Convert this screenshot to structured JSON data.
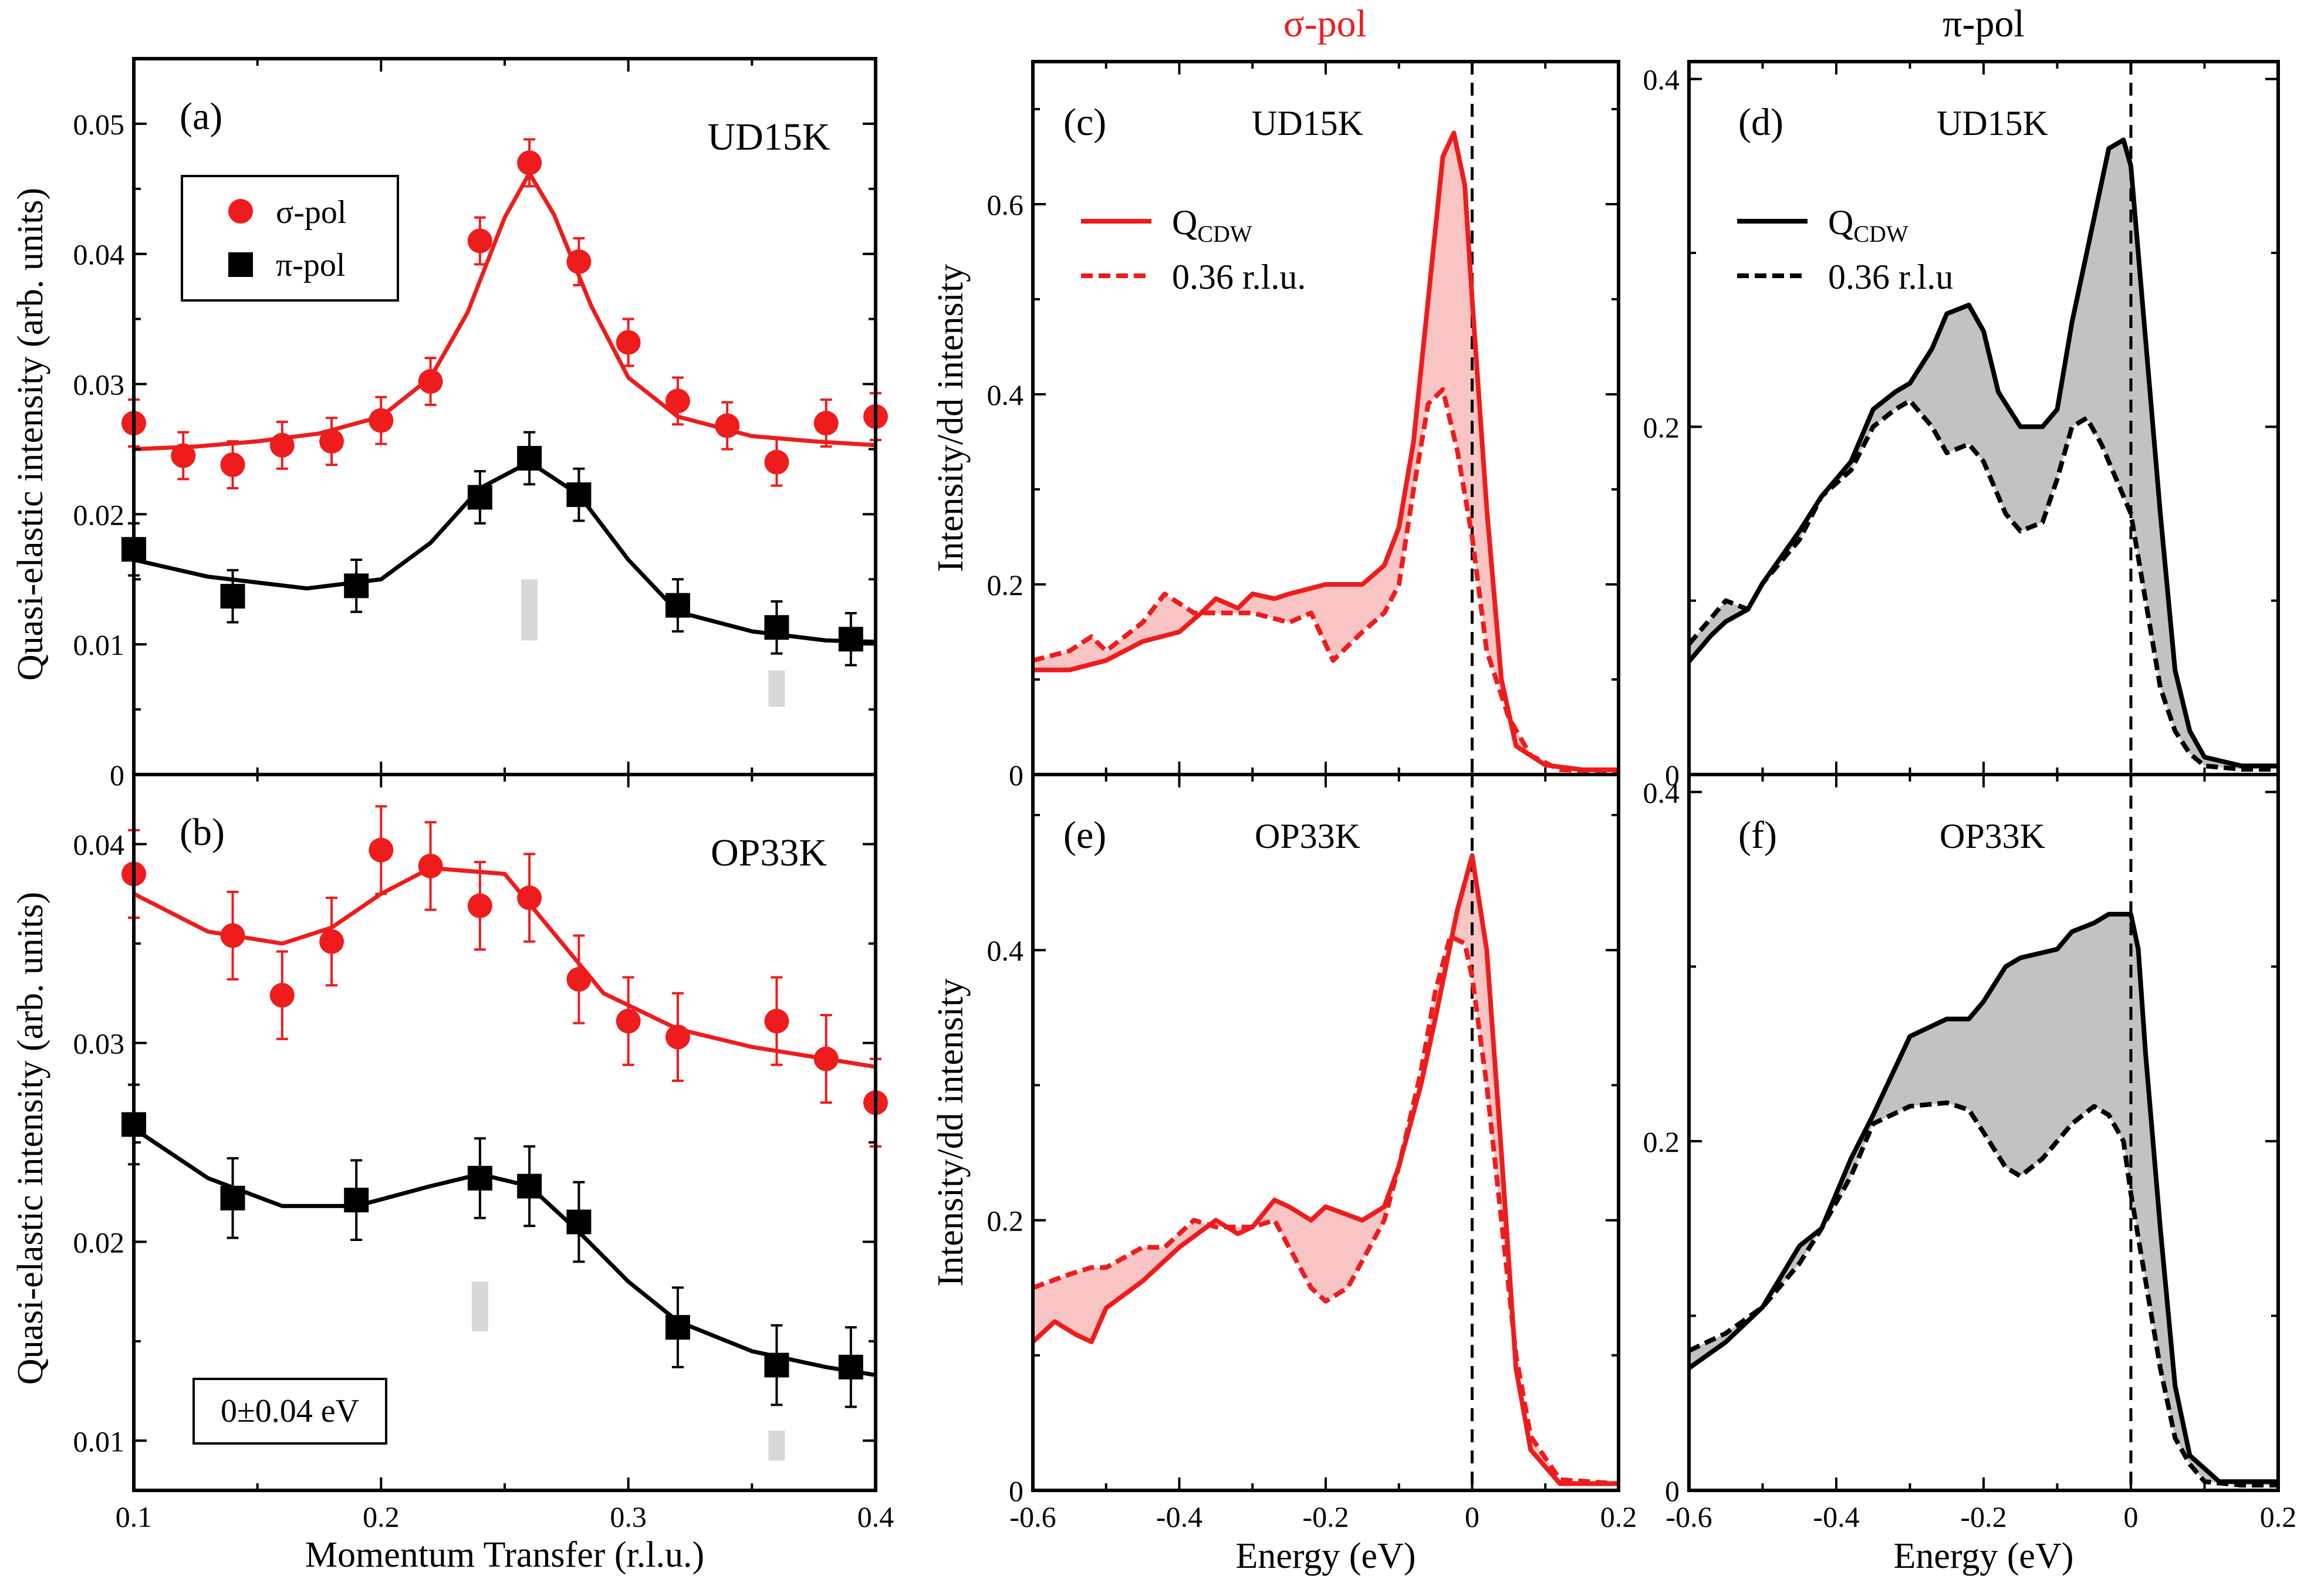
{
  "colors": {
    "red": "#ee1c1c",
    "black": "#000000",
    "red_fill": "#f8c4c4",
    "grey_fill": "#c2c2c2",
    "marker_grey": "#d8d8d8"
  },
  "headers": {
    "sigma": "σ-pol",
    "pi": "π-pol"
  },
  "chart_data": [
    {
      "id": "a",
      "type": "scatter",
      "panel_label": "(a)",
      "sample_label": "UD15K",
      "ylabel": "Quasi-elastic intensity (arb. units)",
      "xlim": [
        0.1,
        0.4
      ],
      "ylim": [
        0,
        0.055
      ],
      "yticks": [
        0,
        0.01,
        0.02,
        0.03,
        0.04,
        0.05
      ],
      "ytick_labels": [
        "0",
        "0.01",
        "0.02",
        "0.03",
        "0.04",
        "0.05"
      ],
      "legend": {
        "entries": [
          "σ-pol",
          "π-pol"
        ],
        "location": "upper-left"
      },
      "series": [
        {
          "name": "σ-pol",
          "color": "red",
          "marker": "circle",
          "x": [
            0.1,
            0.12,
            0.14,
            0.16,
            0.18,
            0.2,
            0.22,
            0.24,
            0.26,
            0.28,
            0.3,
            0.32,
            0.34,
            0.36,
            0.38,
            0.4
          ],
          "y": [
            0.027,
            0.0245,
            0.0238,
            0.0253,
            0.0256,
            0.0272,
            0.0302,
            0.041,
            0.047,
            0.0394,
            0.0332,
            0.0287,
            0.0268,
            0.024,
            0.027,
            0.0275
          ],
          "err": [
            0.0018,
            0.0018,
            0.0018,
            0.0018,
            0.0018,
            0.0018,
            0.0018,
            0.0018,
            0.0018,
            0.0018,
            0.0018,
            0.0018,
            0.0018,
            0.0018,
            0.0018,
            0.0018
          ],
          "fit_x": [
            0.1,
            0.125,
            0.15,
            0.175,
            0.2,
            0.22,
            0.235,
            0.25,
            0.26,
            0.27,
            0.285,
            0.3,
            0.32,
            0.35,
            0.375,
            0.4
          ],
          "fit_y": [
            0.025,
            0.0252,
            0.0256,
            0.0262,
            0.0275,
            0.0305,
            0.0355,
            0.0428,
            0.0462,
            0.043,
            0.036,
            0.0305,
            0.0275,
            0.026,
            0.0256,
            0.0253
          ]
        },
        {
          "name": "π-pol",
          "color": "black",
          "marker": "square",
          "x": [
            0.1,
            0.14,
            0.19,
            0.24,
            0.26,
            0.28,
            0.32,
            0.36,
            0.39
          ],
          "y": [
            0.0173,
            0.0137,
            0.0145,
            0.0213,
            0.0243,
            0.0215,
            0.013,
            0.0113,
            0.0104
          ],
          "err": [
            0.002,
            0.002,
            0.002,
            0.002,
            0.002,
            0.002,
            0.002,
            0.002,
            0.002
          ],
          "fit_x": [
            0.1,
            0.13,
            0.17,
            0.2,
            0.22,
            0.24,
            0.26,
            0.28,
            0.3,
            0.32,
            0.35,
            0.38,
            0.4
          ],
          "fit_y": [
            0.0165,
            0.0152,
            0.0143,
            0.015,
            0.0178,
            0.022,
            0.024,
            0.0215,
            0.0165,
            0.0125,
            0.011,
            0.0103,
            0.0102
          ]
        }
      ],
      "markers": [
        {
          "x": 0.26,
          "y0": 0.0103,
          "y1": 0.015
        },
        {
          "x": 0.36,
          "y0": 0.0052,
          "y1": 0.008
        }
      ]
    },
    {
      "id": "b",
      "type": "scatter",
      "panel_label": "(b)",
      "sample_label": "OP33K",
      "ylabel": "Quasi-elastic intensity (arb. units)",
      "xlabel": "Momentum Transfer (r.l.u.)",
      "xlim": [
        0.1,
        0.4
      ],
      "ylim": [
        0.0075,
        0.0435
      ],
      "xticks": [
        0.1,
        0.2,
        0.3,
        0.4
      ],
      "xtick_labels": [
        "0.1",
        "0.2",
        "0.3",
        "0.4"
      ],
      "yticks": [
        0.01,
        0.02,
        0.03,
        0.04
      ],
      "ytick_labels": [
        "0.01",
        "0.02",
        "0.03",
        "0.04"
      ],
      "annotation": "0±0.04 eV",
      "series": [
        {
          "name": "σ-pol",
          "color": "red",
          "marker": "circle",
          "x": [
            0.1,
            0.14,
            0.16,
            0.18,
            0.2,
            0.22,
            0.24,
            0.26,
            0.28,
            0.3,
            0.32,
            0.36,
            0.38,
            0.4
          ],
          "y": [
            0.0385,
            0.0354,
            0.0324,
            0.0351,
            0.0397,
            0.0389,
            0.0369,
            0.0373,
            0.0332,
            0.0311,
            0.0303,
            0.0311,
            0.0292,
            0.027
          ],
          "err": [
            0.0022,
            0.0022,
            0.0022,
            0.0022,
            0.0022,
            0.0022,
            0.0022,
            0.0022,
            0.0022,
            0.0022,
            0.0022,
            0.0022,
            0.0022,
            0.0022
          ],
          "fit_x": [
            0.1,
            0.13,
            0.16,
            0.18,
            0.2,
            0.22,
            0.25,
            0.27,
            0.29,
            0.32,
            0.35,
            0.38,
            0.4
          ],
          "fit_y": [
            0.0375,
            0.0356,
            0.035,
            0.0358,
            0.0375,
            0.0388,
            0.0385,
            0.0355,
            0.0325,
            0.0307,
            0.0298,
            0.0292,
            0.0288
          ]
        },
        {
          "name": "π-pol",
          "color": "black",
          "marker": "square",
          "x": [
            0.1,
            0.14,
            0.19,
            0.24,
            0.26,
            0.28,
            0.32,
            0.36,
            0.39
          ],
          "y": [
            0.0259,
            0.0222,
            0.0221,
            0.0232,
            0.0228,
            0.021,
            0.0157,
            0.0138,
            0.0137
          ],
          "err": [
            0.002,
            0.002,
            0.002,
            0.002,
            0.002,
            0.002,
            0.002,
            0.002,
            0.002
          ],
          "fit_x": [
            0.1,
            0.13,
            0.16,
            0.19,
            0.22,
            0.24,
            0.26,
            0.28,
            0.3,
            0.32,
            0.35,
            0.38,
            0.4
          ],
          "fit_y": [
            0.0257,
            0.0232,
            0.0218,
            0.0218,
            0.0228,
            0.0234,
            0.0228,
            0.0205,
            0.018,
            0.016,
            0.0145,
            0.0137,
            0.0133
          ]
        }
      ],
      "markers": [
        {
          "x": 0.24,
          "y0": 0.0155,
          "y1": 0.018
        },
        {
          "x": 0.36,
          "y0": 0.009,
          "y1": 0.0105
        }
      ]
    },
    {
      "id": "c",
      "type": "line",
      "panel_label": "(c)",
      "sample_label": "UD15K",
      "ylabel": "Intensity/dd intensity",
      "xlim": [
        -0.6,
        0.2
      ],
      "ylim": [
        0,
        0.75
      ],
      "yticks": [
        0,
        0.2,
        0.4,
        0.6
      ],
      "ytick_labels": [
        "0",
        "0.2",
        "0.4",
        "0.6"
      ],
      "xticks": [
        -0.6,
        -0.4,
        -0.2,
        0,
        0.2
      ],
      "color": "red",
      "fill_between": true,
      "vline_x": 0,
      "legend": {
        "entries": [
          "Q_CDW",
          "0.36 r.l.u."
        ],
        "location": "upper-left"
      },
      "series": [
        {
          "name": "Q_CDW",
          "style": "solid",
          "x": [
            -0.6,
            -0.55,
            -0.5,
            -0.45,
            -0.4,
            -0.37,
            -0.35,
            -0.32,
            -0.3,
            -0.27,
            -0.25,
            -0.2,
            -0.15,
            -0.12,
            -0.1,
            -0.08,
            -0.06,
            -0.04,
            -0.025,
            -0.01,
            0,
            0.02,
            0.04,
            0.06,
            0.1,
            0.15,
            0.2
          ],
          "y": [
            0.11,
            0.11,
            0.12,
            0.14,
            0.15,
            0.17,
            0.185,
            0.175,
            0.19,
            0.185,
            0.19,
            0.2,
            0.2,
            0.22,
            0.26,
            0.35,
            0.5,
            0.65,
            0.675,
            0.62,
            0.5,
            0.28,
            0.1,
            0.03,
            0.01,
            0.005,
            0.005
          ]
        },
        {
          "name": "0.36 r.l.u.",
          "style": "dashed",
          "x": [
            -0.6,
            -0.55,
            -0.52,
            -0.5,
            -0.45,
            -0.42,
            -0.38,
            -0.35,
            -0.3,
            -0.25,
            -0.22,
            -0.19,
            -0.15,
            -0.12,
            -0.1,
            -0.08,
            -0.06,
            -0.04,
            -0.02,
            0,
            0.02,
            0.05,
            0.08,
            0.12,
            0.2
          ],
          "y": [
            0.12,
            0.13,
            0.145,
            0.13,
            0.16,
            0.19,
            0.17,
            0.17,
            0.17,
            0.16,
            0.17,
            0.12,
            0.15,
            0.17,
            0.2,
            0.3,
            0.39,
            0.405,
            0.34,
            0.25,
            0.13,
            0.06,
            0.02,
            0.005,
            0.003
          ]
        }
      ]
    },
    {
      "id": "d",
      "type": "line",
      "panel_label": "(d)",
      "sample_label": "UD15K",
      "xlim": [
        -0.6,
        0.2
      ],
      "ylim": [
        0,
        0.41
      ],
      "yticks": [
        0,
        0.2,
        0.4
      ],
      "ytick_labels": [
        "0",
        "0.2",
        "0.4"
      ],
      "xticks": [
        -0.6,
        -0.4,
        -0.2,
        0,
        0.2
      ],
      "color": "black",
      "fill_between": true,
      "vline_x": 0,
      "legend": {
        "entries": [
          "Q_CDW",
          "0.36 r.l.u"
        ],
        "location": "upper-left"
      },
      "series": [
        {
          "name": "Q_CDW",
          "style": "solid",
          "x": [
            -0.6,
            -0.57,
            -0.55,
            -0.52,
            -0.5,
            -0.45,
            -0.42,
            -0.38,
            -0.35,
            -0.32,
            -0.3,
            -0.27,
            -0.25,
            -0.22,
            -0.2,
            -0.18,
            -0.15,
            -0.12,
            -0.1,
            -0.08,
            -0.05,
            -0.03,
            -0.01,
            0,
            0.02,
            0.04,
            0.06,
            0.08,
            0.1,
            0.15,
            0.2
          ],
          "y": [
            0.065,
            0.08,
            0.088,
            0.095,
            0.11,
            0.14,
            0.16,
            0.18,
            0.21,
            0.22,
            0.225,
            0.245,
            0.265,
            0.27,
            0.255,
            0.22,
            0.2,
            0.2,
            0.21,
            0.26,
            0.32,
            0.36,
            0.365,
            0.35,
            0.25,
            0.15,
            0.06,
            0.025,
            0.01,
            0.005,
            0.005
          ]
        },
        {
          "name": "0.36 r.l.u",
          "style": "dashed",
          "x": [
            -0.6,
            -0.57,
            -0.55,
            -0.52,
            -0.5,
            -0.45,
            -0.42,
            -0.38,
            -0.35,
            -0.32,
            -0.3,
            -0.27,
            -0.25,
            -0.22,
            -0.2,
            -0.17,
            -0.15,
            -0.12,
            -0.1,
            -0.08,
            -0.06,
            -0.04,
            -0.02,
            0,
            0.02,
            0.04,
            0.06,
            0.08,
            0.1,
            0.15,
            0.2
          ],
          "y": [
            0.075,
            0.09,
            0.1,
            0.095,
            0.11,
            0.135,
            0.16,
            0.175,
            0.2,
            0.21,
            0.215,
            0.2,
            0.185,
            0.19,
            0.18,
            0.15,
            0.14,
            0.145,
            0.17,
            0.2,
            0.205,
            0.19,
            0.17,
            0.15,
            0.1,
            0.05,
            0.025,
            0.012,
            0.005,
            0.003,
            0.003
          ]
        }
      ]
    },
    {
      "id": "e",
      "type": "line",
      "panel_label": "(e)",
      "sample_label": "OP33K",
      "ylabel": "Intensity/dd intensity",
      "xlabel": "Energy (eV)",
      "xlim": [
        -0.6,
        0.2
      ],
      "ylim": [
        0,
        0.53
      ],
      "yticks": [
        0,
        0.2,
        0.4
      ],
      "ytick_labels": [
        "0",
        "0.2",
        "0.4"
      ],
      "xticks": [
        -0.6,
        -0.4,
        -0.2,
        0,
        0.2
      ],
      "xtick_labels": [
        "-0.6",
        "-0.4",
        "-0.2",
        "0",
        "0.2"
      ],
      "color": "red",
      "fill_between": true,
      "vline_x": 0,
      "series": [
        {
          "name": "Q_CDW",
          "style": "solid",
          "x": [
            -0.6,
            -0.57,
            -0.54,
            -0.52,
            -0.5,
            -0.45,
            -0.4,
            -0.35,
            -0.32,
            -0.3,
            -0.27,
            -0.25,
            -0.22,
            -0.2,
            -0.15,
            -0.12,
            -0.1,
            -0.07,
            -0.05,
            -0.02,
            0,
            0.02,
            0.04,
            0.06,
            0.08,
            0.12,
            0.2
          ],
          "y": [
            0.11,
            0.125,
            0.115,
            0.11,
            0.135,
            0.155,
            0.18,
            0.2,
            0.19,
            0.195,
            0.215,
            0.21,
            0.2,
            0.21,
            0.2,
            0.21,
            0.24,
            0.3,
            0.35,
            0.43,
            0.47,
            0.4,
            0.25,
            0.09,
            0.03,
            0.005,
            0.005
          ]
        },
        {
          "name": "0.36 r.l.u.",
          "style": "dashed",
          "x": [
            -0.6,
            -0.55,
            -0.52,
            -0.5,
            -0.45,
            -0.42,
            -0.38,
            -0.35,
            -0.3,
            -0.27,
            -0.25,
            -0.22,
            -0.2,
            -0.17,
            -0.15,
            -0.12,
            -0.1,
            -0.07,
            -0.05,
            -0.03,
            -0.01,
            0,
            0.02,
            0.04,
            0.06,
            0.08,
            0.12,
            0.2
          ],
          "y": [
            0.15,
            0.16,
            0.165,
            0.165,
            0.18,
            0.18,
            0.2,
            0.195,
            0.195,
            0.2,
            0.18,
            0.15,
            0.14,
            0.15,
            0.17,
            0.2,
            0.24,
            0.31,
            0.37,
            0.41,
            0.405,
            0.38,
            0.3,
            0.2,
            0.1,
            0.04,
            0.008,
            0.005
          ]
        }
      ]
    },
    {
      "id": "f",
      "type": "line",
      "panel_label": "(f)",
      "sample_label": "OP33K",
      "xlabel": "Energy (eV)",
      "xlim": [
        -0.6,
        0.2
      ],
      "ylim": [
        0,
        0.41
      ],
      "yticks": [
        0,
        0.2,
        0.4
      ],
      "ytick_labels": [
        "0",
        "0.2",
        "0.4"
      ],
      "xticks": [
        -0.6,
        -0.4,
        -0.2,
        0,
        0.2
      ],
      "xtick_labels": [
        "-0.6",
        "-0.4",
        "-0.2",
        "0",
        "0.2"
      ],
      "color": "black",
      "fill_between": true,
      "vline_x": 0,
      "series": [
        {
          "name": "Q_CDW",
          "style": "solid",
          "x": [
            -0.6,
            -0.55,
            -0.5,
            -0.45,
            -0.42,
            -0.38,
            -0.35,
            -0.3,
            -0.25,
            -0.22,
            -0.2,
            -0.17,
            -0.15,
            -0.1,
            -0.08,
            -0.05,
            -0.03,
            0,
            0.01,
            0.02,
            0.04,
            0.06,
            0.08,
            0.12,
            0.2
          ],
          "y": [
            0.07,
            0.085,
            0.105,
            0.14,
            0.15,
            0.19,
            0.215,
            0.26,
            0.27,
            0.27,
            0.28,
            0.3,
            0.305,
            0.31,
            0.32,
            0.325,
            0.33,
            0.33,
            0.31,
            0.25,
            0.15,
            0.06,
            0.02,
            0.005,
            0.005
          ]
        },
        {
          "name": "0.36 r.l.u.",
          "style": "dashed",
          "x": [
            -0.6,
            -0.55,
            -0.5,
            -0.45,
            -0.42,
            -0.38,
            -0.35,
            -0.3,
            -0.25,
            -0.22,
            -0.2,
            -0.17,
            -0.15,
            -0.12,
            -0.1,
            -0.08,
            -0.05,
            -0.03,
            -0.01,
            0,
            0.02,
            0.04,
            0.06,
            0.08,
            0.1,
            0.15,
            0.2
          ],
          "y": [
            0.08,
            0.09,
            0.105,
            0.13,
            0.15,
            0.18,
            0.21,
            0.22,
            0.222,
            0.218,
            0.205,
            0.185,
            0.18,
            0.19,
            0.2,
            0.21,
            0.22,
            0.215,
            0.2,
            0.17,
            0.12,
            0.07,
            0.03,
            0.015,
            0.005,
            0.003,
            0.003
          ]
        }
      ]
    }
  ]
}
